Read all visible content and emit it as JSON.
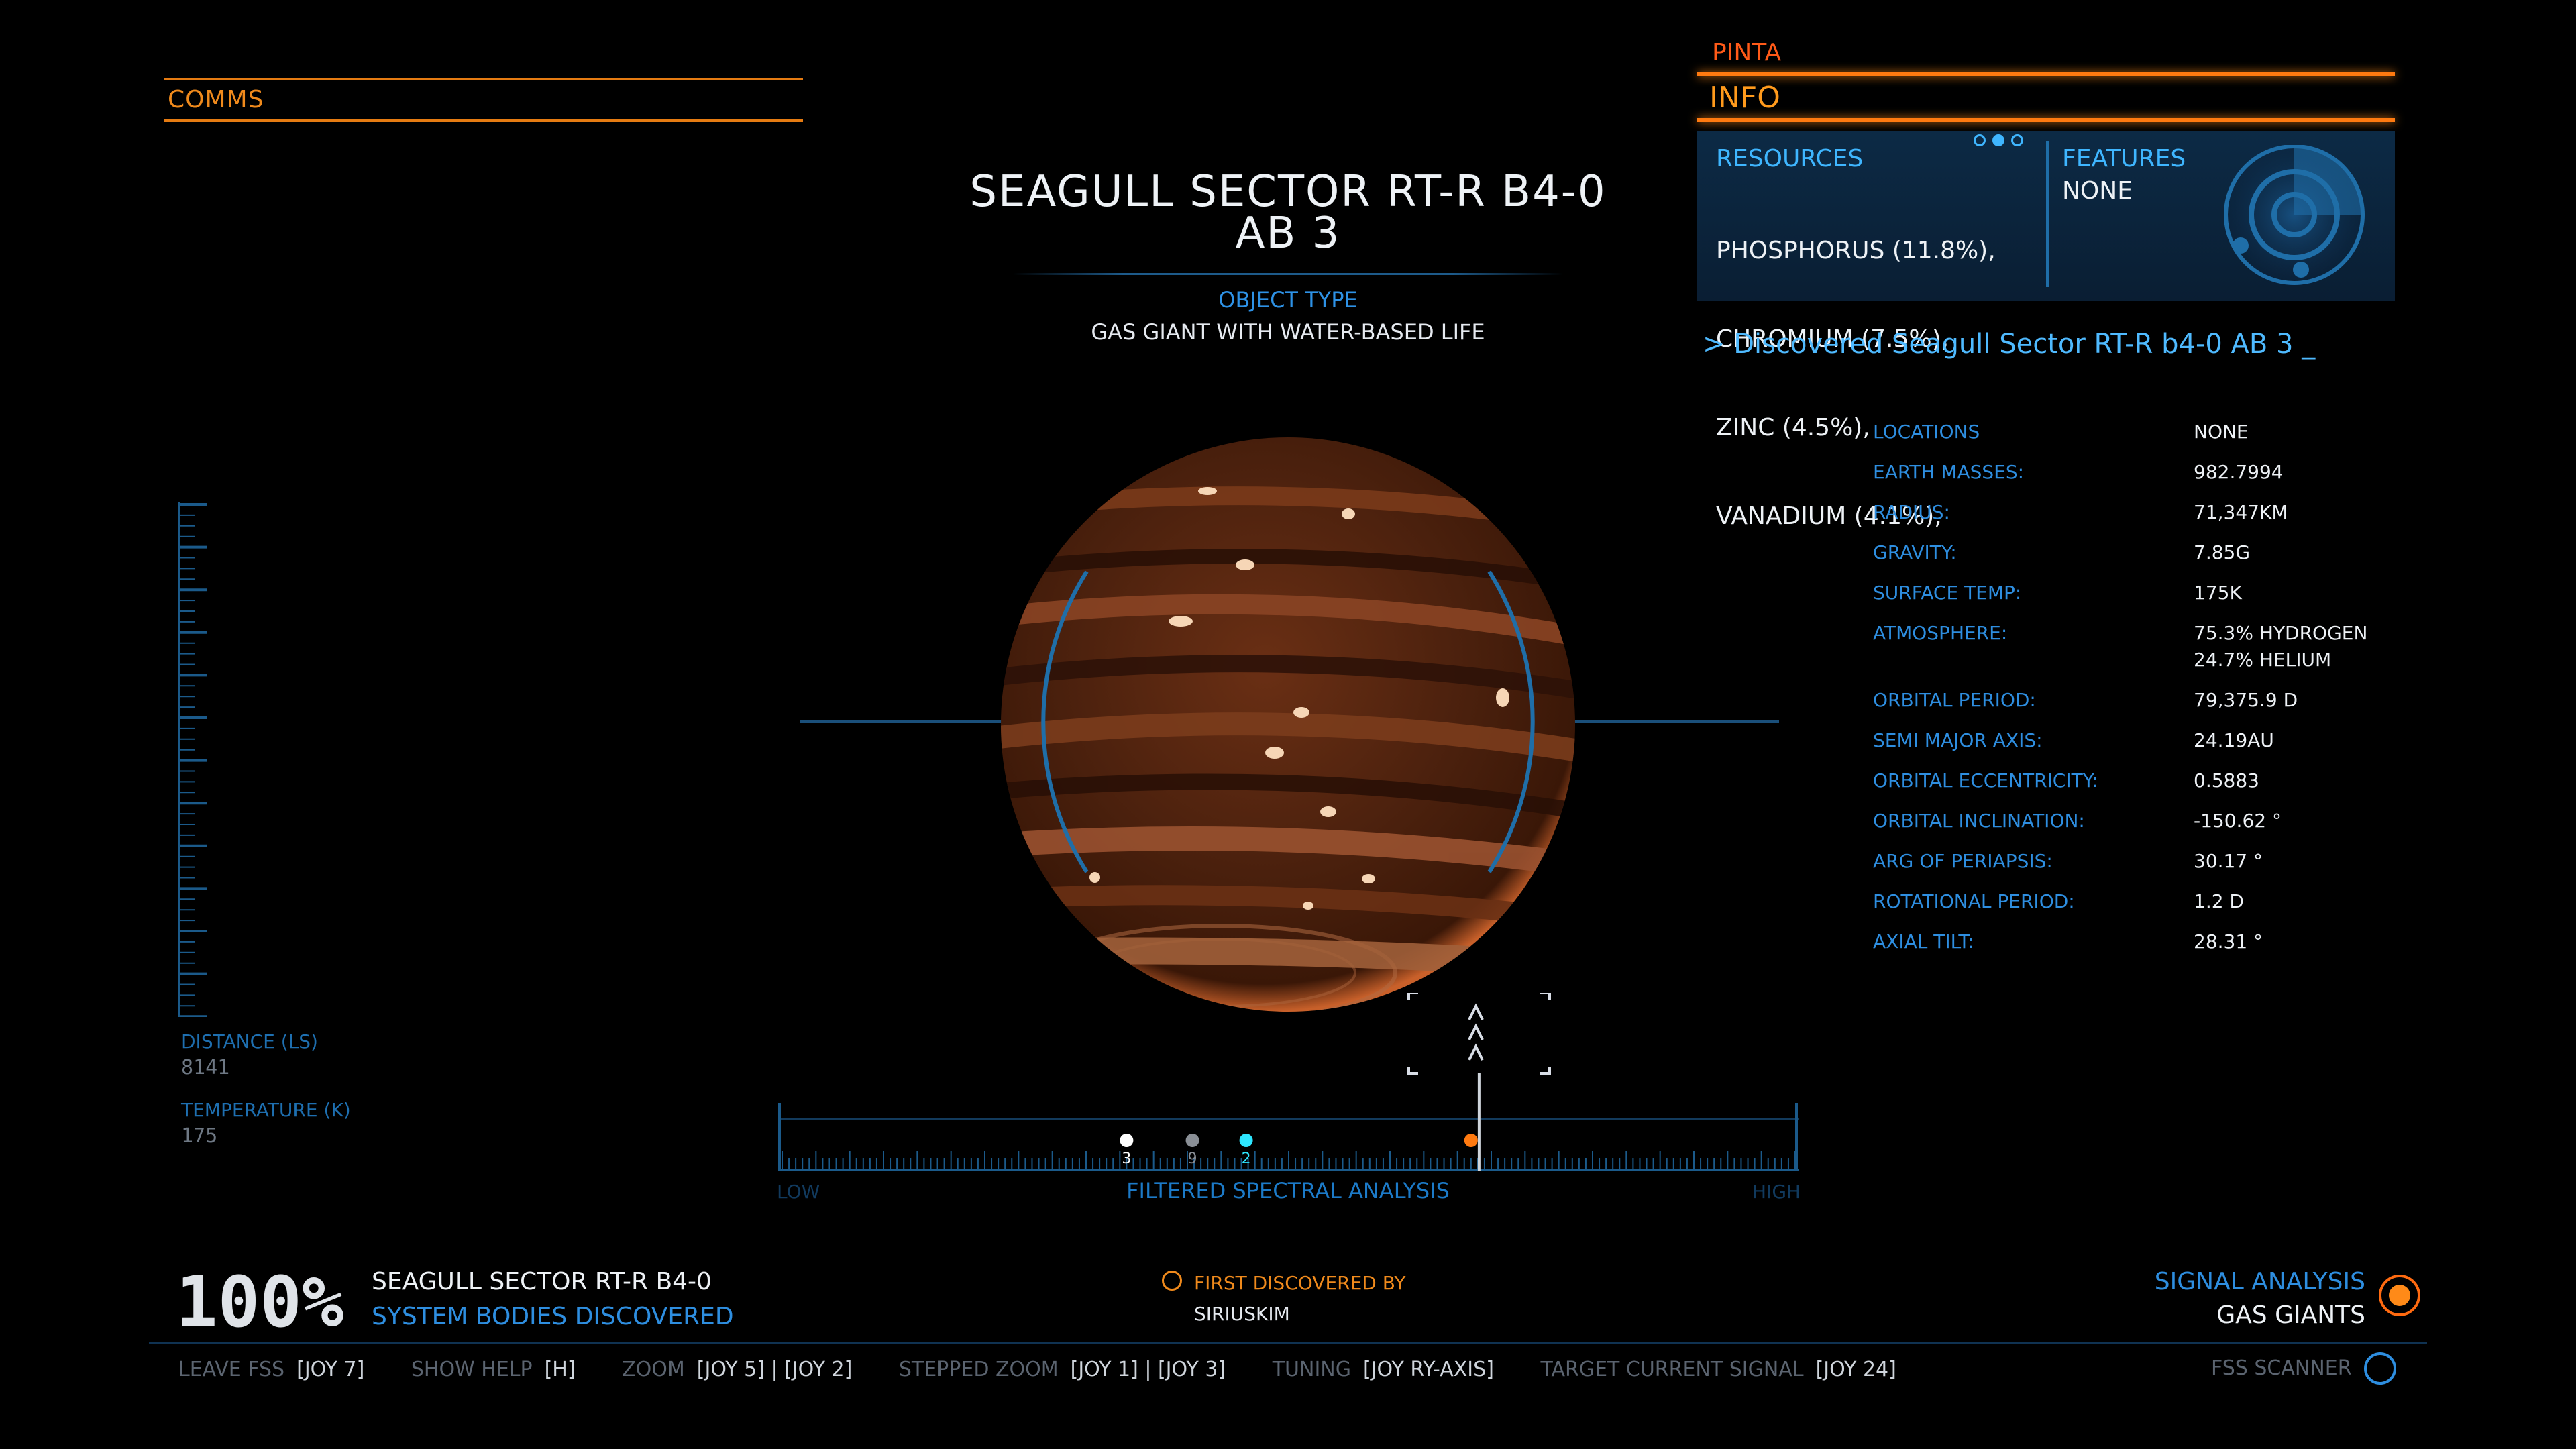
{
  "comms": {
    "title": "COMMS"
  },
  "body": {
    "name_line1": "SEAGULL SECTOR RT-R B4-0",
    "name_line2": "AB 3",
    "object_type_label": "OBJECT TYPE",
    "object_type": "GAS GIANT WITH WATER-BASED LIFE"
  },
  "info": {
    "ship": "PINTA",
    "title": "INFO",
    "resources_title": "RESOURCES",
    "resources": [
      "PHOSPHORUS (11.8%),",
      "CHROMIUM (7.5%),",
      "ZINC (4.5%),",
      "VANADIUM (4.1%),"
    ],
    "features_title": "FEATURES",
    "features": "NONE",
    "discovered_msg": "> Discovered Seagull Sector RT-R b4-0 AB 3  _"
  },
  "stats": [
    {
      "key": "LOCATIONS",
      "value": "NONE"
    },
    {
      "key": "EARTH MASSES:",
      "value": "982.7994"
    },
    {
      "key": "RADIUS:",
      "value": "71,347KM"
    },
    {
      "key": "GRAVITY:",
      "value": "7.85G"
    },
    {
      "key": "SURFACE TEMP:",
      "value": "175K"
    },
    {
      "key": "ATMOSPHERE:",
      "value": "75.3% HYDROGEN",
      "value2": "24.7% HELIUM"
    },
    {
      "key": "ORBITAL PERIOD:",
      "value": "79,375.9 D"
    },
    {
      "key": "SEMI MAJOR AXIS:",
      "value": "24.19AU"
    },
    {
      "key": "ORBITAL ECCENTRICITY:",
      "value": "0.5883"
    },
    {
      "key": "ORBITAL INCLINATION:",
      "value": "-150.62 °"
    },
    {
      "key": "ARG OF PERIAPSIS:",
      "value": "30.17 °"
    },
    {
      "key": "ROTATIONAL PERIOD:",
      "value": "1.2 D"
    },
    {
      "key": "AXIAL TILT:",
      "value": "28.31 °"
    }
  ],
  "left_gauge": {
    "distance_label": "DISTANCE (LS)",
    "distance_value": "8141",
    "temperature_label": "TEMPERATURE (K)",
    "temperature_value": "175"
  },
  "spectral": {
    "low": "LOW",
    "high": "HIGH",
    "title": "FILTERED SPECTRAL ANALYSIS",
    "signals": [
      {
        "label": "3",
        "color": "#ffffff",
        "position": 0.34
      },
      {
        "label": "9",
        "color": "#8a8f96",
        "position": 0.405
      },
      {
        "label": "2",
        "color": "#2ee6ff",
        "position": 0.458
      },
      {
        "label": "",
        "color": "#ff7a10",
        "position": 0.68
      }
    ],
    "tuner_position": 0.688
  },
  "discovery": {
    "percent": "100%",
    "system_name": "SEAGULL SECTOR RT-R B4-0",
    "system_label": "SYSTEM BODIES DISCOVERED",
    "first_label": "FIRST DISCOVERED BY",
    "first_value": "SIRIUSKIM"
  },
  "signal": {
    "label": "SIGNAL ANALYSIS",
    "value": "GAS GIANTS"
  },
  "controls": [
    {
      "label": "LEAVE FSS",
      "key": "[JOY 7]"
    },
    {
      "label": "SHOW HELP",
      "key": "[H]"
    },
    {
      "label": "ZOOM",
      "key": "[JOY 5] |  [JOY 2]"
    },
    {
      "label": "STEPPED ZOOM",
      "key": "[JOY 1] |  [JOY 3]"
    },
    {
      "label": "TUNING",
      "key": "[JOY RY-AXIS]"
    },
    {
      "label": "TARGET CURRENT SIGNAL",
      "key": "[JOY 24]"
    }
  ],
  "fss": {
    "label": "FSS SCANNER"
  },
  "colors": {
    "accent_orange": "#f08a1c",
    "accent_blue": "#2e8ee0",
    "planet": "#8a4526"
  }
}
